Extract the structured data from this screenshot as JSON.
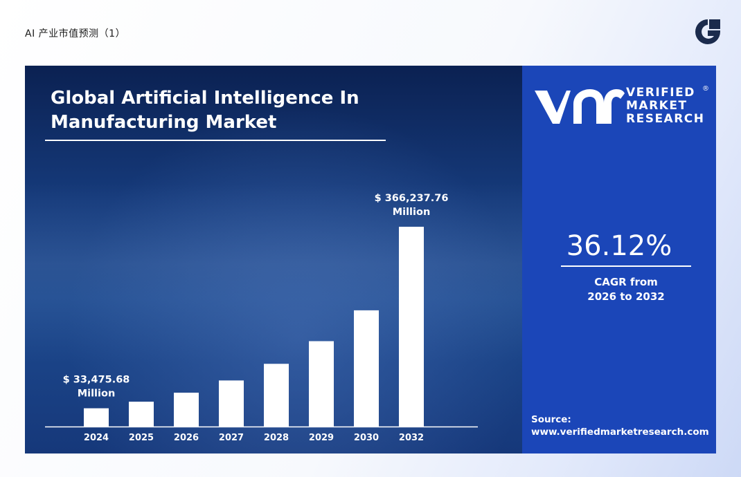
{
  "page": {
    "title": "AI 产业市值预测（1）"
  },
  "brand": {
    "icon": "brand-g-logo-icon",
    "color": "#1b2b4d"
  },
  "chart_data": {
    "type": "bar",
    "title": "Global Artificial Intelligence In Manufacturing Market",
    "categories": [
      "2024",
      "2025",
      "2026",
      "2027",
      "2028",
      "2029",
      "2030",
      "2032"
    ],
    "values": [
      33475.68,
      45570,
      62040,
      84450,
      114960,
      156490,
      213030,
      366237.76
    ],
    "ylim": [
      0,
      366237.76
    ],
    "unit": "Million",
    "bar_color": "#ffffff",
    "grid": false,
    "annotations": [
      {
        "category": "2024",
        "label": "$ 33,475.68",
        "unit": "Million"
      },
      {
        "category": "2032",
        "label": "$ 366,237.76",
        "unit": "Million"
      }
    ]
  },
  "publisher": {
    "logo_icon": "vmr-logo-icon",
    "name_lines": [
      "VERIFIED",
      "MARKET",
      "RESEARCH"
    ],
    "registered": "®"
  },
  "cagr": {
    "value": "36.12%",
    "label_lines": [
      "CAGR from",
      "2026 to 2032"
    ]
  },
  "source": {
    "label": "Source:",
    "url": "www.verifiedmarketresearch.com"
  },
  "colors": {
    "panel_dark": "#0b2152",
    "panel_accent": "#1b46b8",
    "text": "#ffffff"
  }
}
